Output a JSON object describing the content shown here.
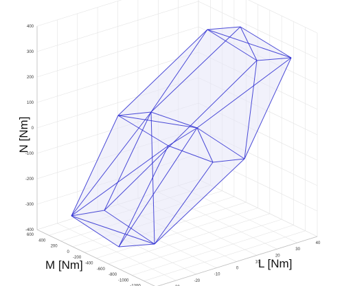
{
  "chart_data": {
    "type": "3d-polyhedron",
    "title": "",
    "xlabel": "L [Nm]",
    "ylabel": "M [Nm]",
    "zlabel": "N [Nm]",
    "xlim": [
      -40,
      40
    ],
    "ylim": [
      -1400,
      600
    ],
    "zlim": [
      -400,
      400
    ],
    "x_ticks": [
      "-40",
      "-30",
      "-20",
      "-10",
      "0",
      "10",
      "20",
      "30",
      "40"
    ],
    "y_ticks": [
      "600",
      "400",
      "200",
      "0",
      "-200",
      "-400",
      "-600",
      "-800",
      "-1000",
      "-1200",
      "-1400"
    ],
    "z_ticks": [
      "400",
      "300",
      "200",
      "100",
      "0",
      "-100",
      "-200",
      "-300",
      "-400"
    ],
    "grid": true,
    "edge_color": "#2a2ad0",
    "face_color": "#e6e6f8"
  }
}
